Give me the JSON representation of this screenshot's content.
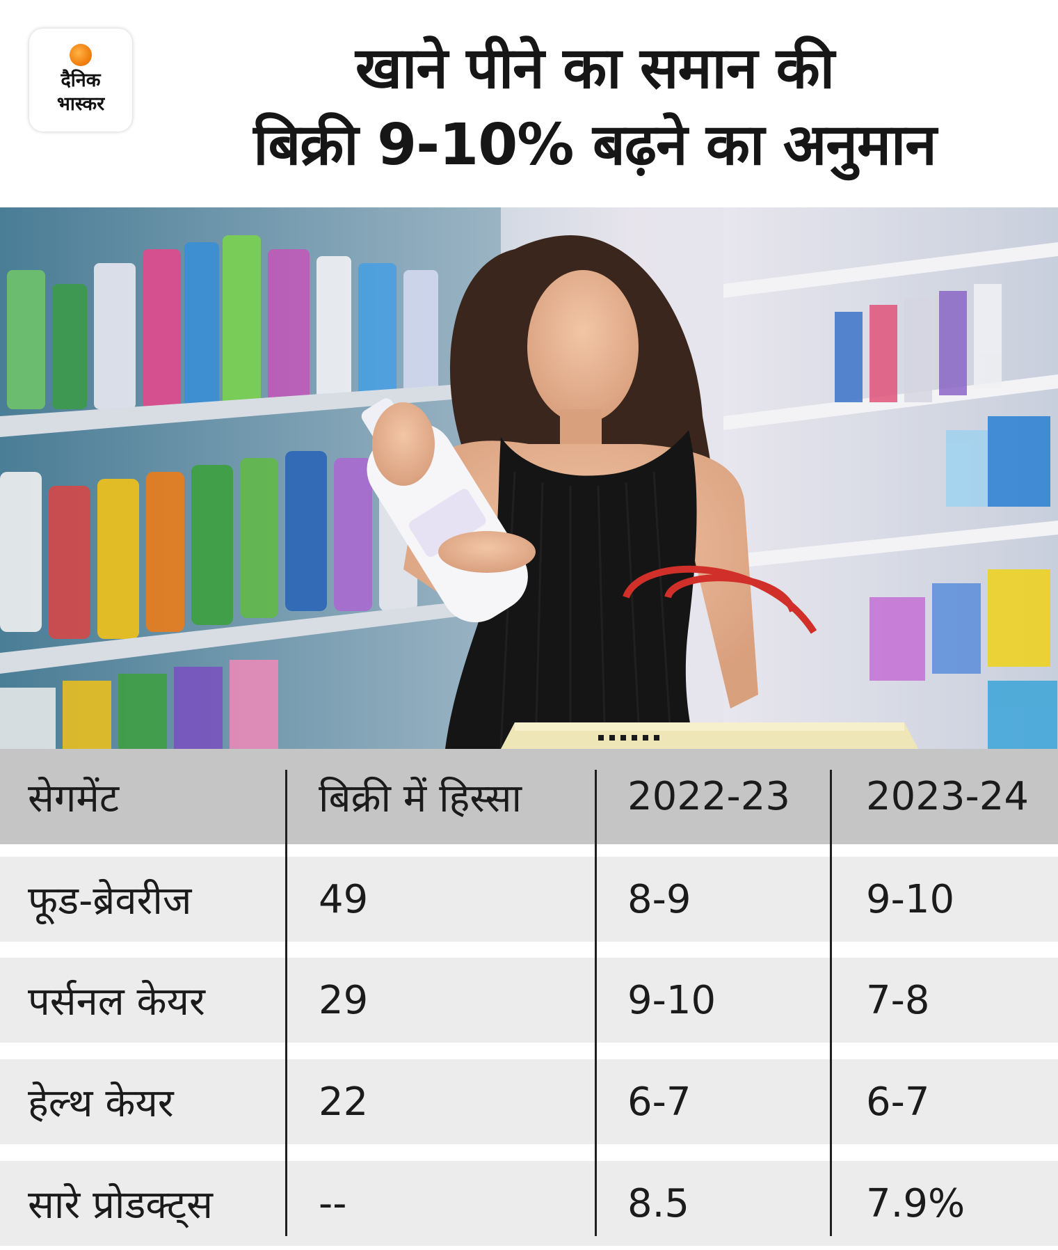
{
  "logo": {
    "line1": "दैनिक",
    "line2": "भास्कर",
    "sun_color": "#f07d0c"
  },
  "title": {
    "line1": "खाने पीने का समान की",
    "line2": "बिक्री 9-10% बढ़ने का अनुमान"
  },
  "table": {
    "headers": [
      "सेगमेंट",
      "बिक्री में हिस्सा",
      "2022-23",
      "2023-24"
    ],
    "rows": [
      [
        "फूड-ब्रेवरीज",
        "49",
        "8-9",
        "9-10"
      ],
      [
        "पर्सनल केयर",
        "29",
        "9-10",
        "7-8"
      ],
      [
        "हेल्थ केयर",
        "22",
        "6-7",
        "6-7"
      ],
      [
        "सारे प्रोडक्ट्स",
        "--",
        "8.5",
        "7.9%"
      ]
    ]
  }
}
